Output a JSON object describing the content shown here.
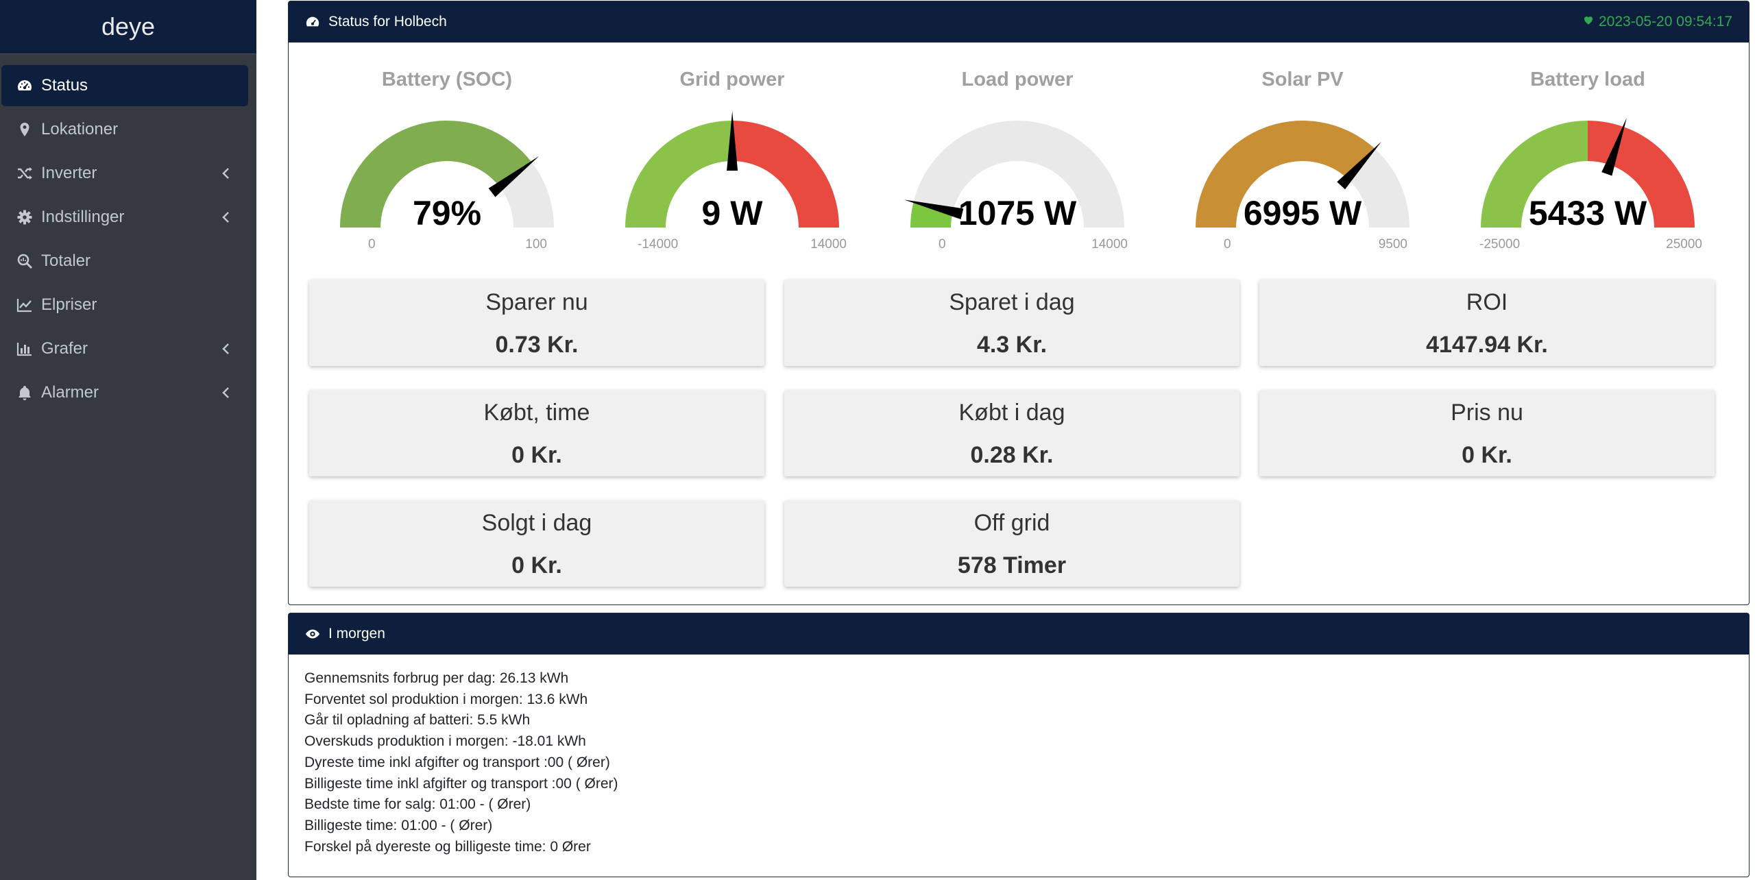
{
  "sidebar": {
    "brand": "deye",
    "items": [
      {
        "label": "Status",
        "icon": "tachometer-icon",
        "active": true
      },
      {
        "label": "Lokationer",
        "icon": "map-marker-icon"
      },
      {
        "label": "Inverter",
        "icon": "shuffle-icon",
        "submenu": true
      },
      {
        "label": "Indstillinger",
        "icon": "gear-icon",
        "submenu": true
      },
      {
        "label": "Totaler",
        "icon": "search-icon"
      },
      {
        "label": "Elpriser",
        "icon": "line-chart-icon"
      },
      {
        "label": "Grafer",
        "icon": "bar-chart-icon",
        "submenu": true
      },
      {
        "label": "Alarmer",
        "icon": "bell-icon",
        "submenu": true
      }
    ]
  },
  "status": {
    "title": "Status for Holbech",
    "heart_icon": "heart-icon",
    "timestamp": "2023-05-20 09:54:17",
    "timestamp_color": "#34a853",
    "gauges": [
      {
        "title": "Battery (SOC)",
        "value_text": "79%",
        "value": 79,
        "min": 0,
        "max": 100,
        "min_label": "0",
        "max_label": "100",
        "style": "fill",
        "fill_color": "#7fad4f"
      },
      {
        "title": "Grid power",
        "value_text": "9 W",
        "value": 9,
        "min": -14000,
        "max": 14000,
        "min_label": "-14000",
        "max_label": "14000",
        "style": "split",
        "left_color": "#8bc34a",
        "right_color": "#e84a3f"
      },
      {
        "title": "Load power",
        "value_text": "1075 W",
        "value": 1075,
        "min": 0,
        "max": 14000,
        "min_label": "0",
        "max_label": "14000",
        "style": "fill",
        "fill_color": "#7dc63f"
      },
      {
        "title": "Solar PV",
        "value_text": "6995 W",
        "value": 6995,
        "min": 0,
        "max": 9500,
        "min_label": "0",
        "max_label": "9500",
        "style": "fill",
        "fill_color": "#c98f34"
      },
      {
        "title": "Battery load",
        "value_text": "5433 W",
        "value": 5433,
        "min": -25000,
        "max": 25000,
        "min_label": "-25000",
        "max_label": "25000",
        "style": "split",
        "left_color": "#8bc34a",
        "right_color": "#e84a3f"
      }
    ],
    "tiles": [
      {
        "label": "Sparer nu",
        "value": "0.73 Kr."
      },
      {
        "label": "Sparet i dag",
        "value": "4.3 Kr."
      },
      {
        "label": "ROI",
        "value": "4147.94 Kr."
      },
      {
        "label": "Købt, time",
        "value": "0 Kr."
      },
      {
        "label": "Købt i dag",
        "value": "0.28 Kr."
      },
      {
        "label": "Pris nu",
        "value": "0 Kr."
      },
      {
        "label": "Solgt i dag",
        "value": "0 Kr."
      },
      {
        "label": "Off grid",
        "value": "578 Timer"
      }
    ]
  },
  "morning": {
    "title": "I morgen",
    "lines": [
      "Gennemsnits forbrug per dag: 26.13 kWh",
      "Forventet sol produktion i morgen: 13.6 kWh",
      "Går til opladning af batteri: 5.5 kWh",
      "Overskuds produktion i morgen: -18.01 kWh",
      "Dyreste time inkl afgifter og transport :00 ( Ører)",
      "Billigeste time inkl afgifter og transport :00 ( Ører)",
      "Bedste time for salg: 01:00 - ( Ører)",
      "Billigeste time: 01:00 - ( Ører)",
      "Forskel på dyereste og billigeste time: 0 Ører"
    ]
  }
}
